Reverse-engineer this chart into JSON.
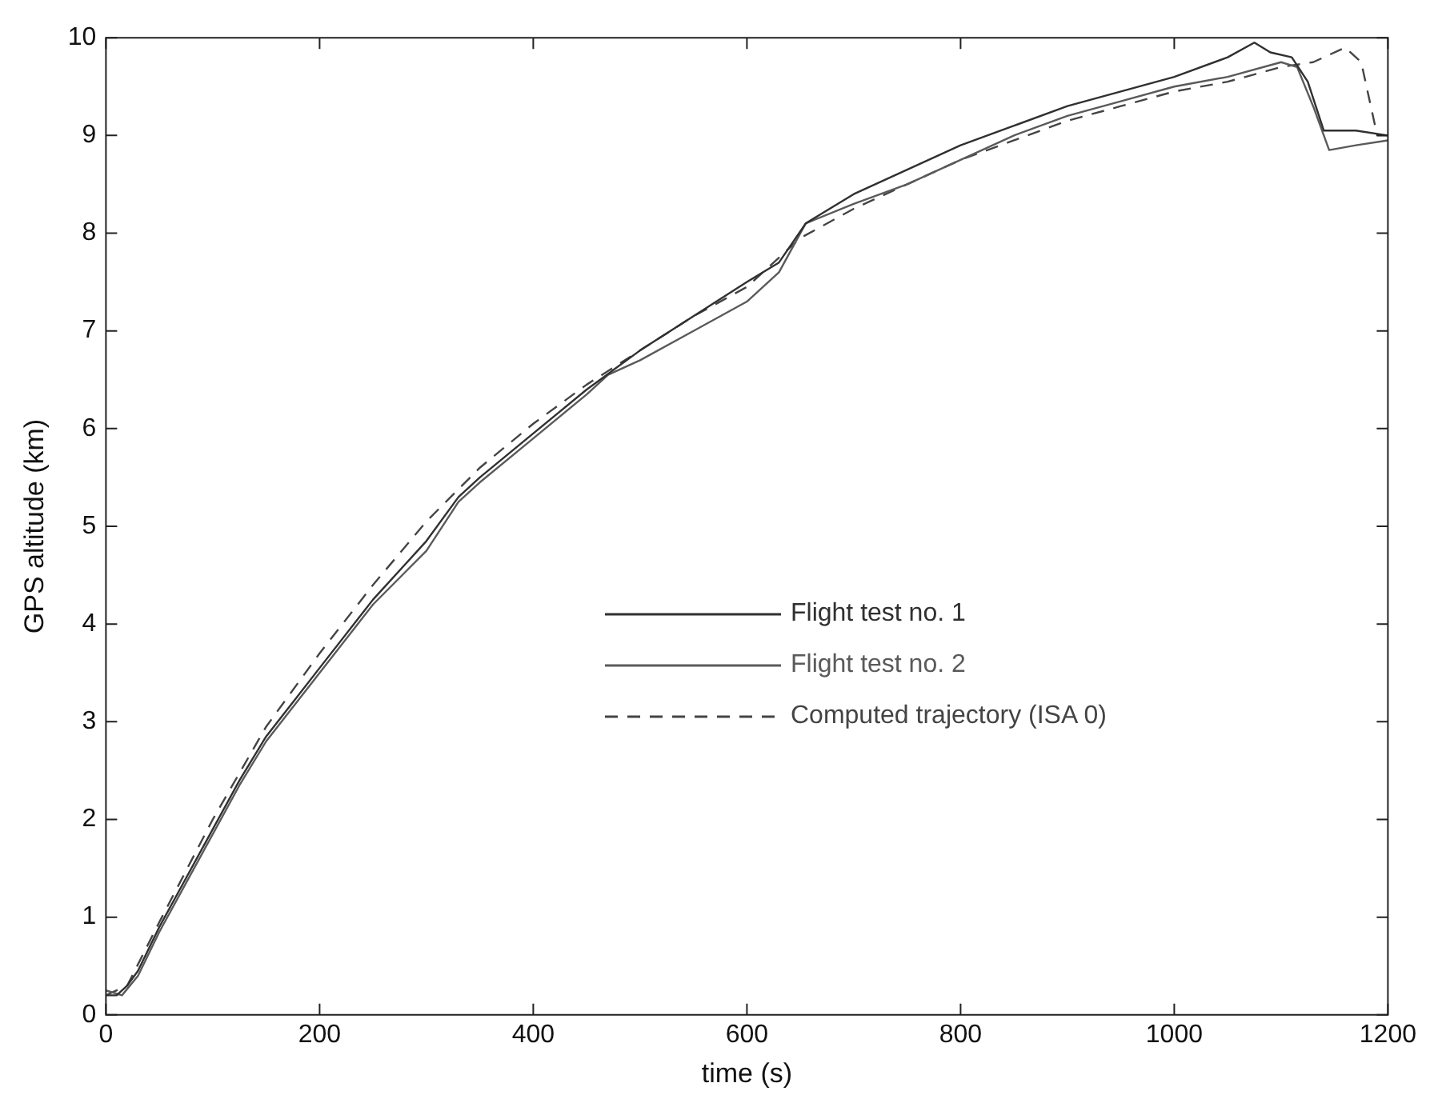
{
  "chart_data": {
    "type": "line",
    "xlabel": "time (s)",
    "ylabel": "GPS altitude (km)",
    "xlim": [
      0,
      1200
    ],
    "xticks": [
      0,
      200,
      400,
      600,
      800,
      1000,
      1200
    ],
    "ylim": [
      0,
      10
    ],
    "yticks": [
      0,
      1,
      2,
      3,
      4,
      5,
      6,
      7,
      8,
      9,
      10
    ],
    "grid": false,
    "legend": "right",
    "marker": "none",
    "series": [
      {
        "name": "Flight test no. 1",
        "color": "#303030",
        "line_style": "solid",
        "x": [
          0,
          10,
          20,
          30,
          50,
          75,
          100,
          125,
          150,
          175,
          200,
          250,
          300,
          330,
          350,
          400,
          450,
          500,
          550,
          600,
          630,
          655,
          700,
          750,
          800,
          850,
          900,
          950,
          1000,
          1050,
          1075,
          1090,
          1110,
          1125,
          1140,
          1150,
          1170,
          1200
        ],
        "values": [
          0.2,
          0.2,
          0.3,
          0.45,
          0.9,
          1.4,
          1.9,
          2.4,
          2.85,
          3.2,
          3.55,
          4.25,
          4.85,
          5.3,
          5.5,
          5.95,
          6.4,
          6.8,
          7.15,
          7.5,
          7.7,
          8.1,
          8.4,
          8.65,
          8.9,
          9.1,
          9.3,
          9.45,
          9.6,
          9.8,
          9.95,
          9.85,
          9.8,
          9.55,
          9.05,
          9.05,
          9.05,
          9.0
        ]
      },
      {
        "name": "Flight test no. 2",
        "color": "#5a5a5a",
        "line_style": "solid",
        "x": [
          0,
          15,
          30,
          50,
          75,
          100,
          125,
          150,
          175,
          200,
          250,
          300,
          330,
          350,
          400,
          450,
          470,
          500,
          550,
          600,
          630,
          655,
          700,
          750,
          800,
          850,
          900,
          950,
          1000,
          1050,
          1100,
          1115,
          1130,
          1145,
          1170,
          1200
        ],
        "values": [
          0.25,
          0.2,
          0.4,
          0.85,
          1.35,
          1.85,
          2.35,
          2.8,
          3.15,
          3.5,
          4.2,
          4.75,
          5.25,
          5.45,
          5.9,
          6.35,
          6.55,
          6.7,
          7.0,
          7.3,
          7.6,
          8.1,
          8.3,
          8.5,
          8.75,
          9.0,
          9.2,
          9.35,
          9.5,
          9.6,
          9.75,
          9.7,
          9.3,
          8.85,
          8.9,
          8.95
        ]
      },
      {
        "name": "Computed trajectory (ISA 0)",
        "color": "#444444",
        "line_style": "dashed",
        "x": [
          0,
          20,
          50,
          100,
          150,
          200,
          250,
          300,
          350,
          400,
          450,
          500,
          550,
          600,
          650,
          700,
          750,
          800,
          850,
          900,
          950,
          1000,
          1050,
          1100,
          1130,
          1160,
          1175,
          1190,
          1200
        ],
        "values": [
          0.2,
          0.3,
          0.95,
          2.0,
          2.95,
          3.7,
          4.4,
          5.05,
          5.6,
          6.05,
          6.45,
          6.8,
          7.15,
          7.45,
          7.95,
          8.25,
          8.5,
          8.75,
          8.95,
          9.15,
          9.3,
          9.45,
          9.55,
          9.7,
          9.75,
          9.9,
          9.75,
          9.0,
          9.0
        ]
      }
    ]
  }
}
